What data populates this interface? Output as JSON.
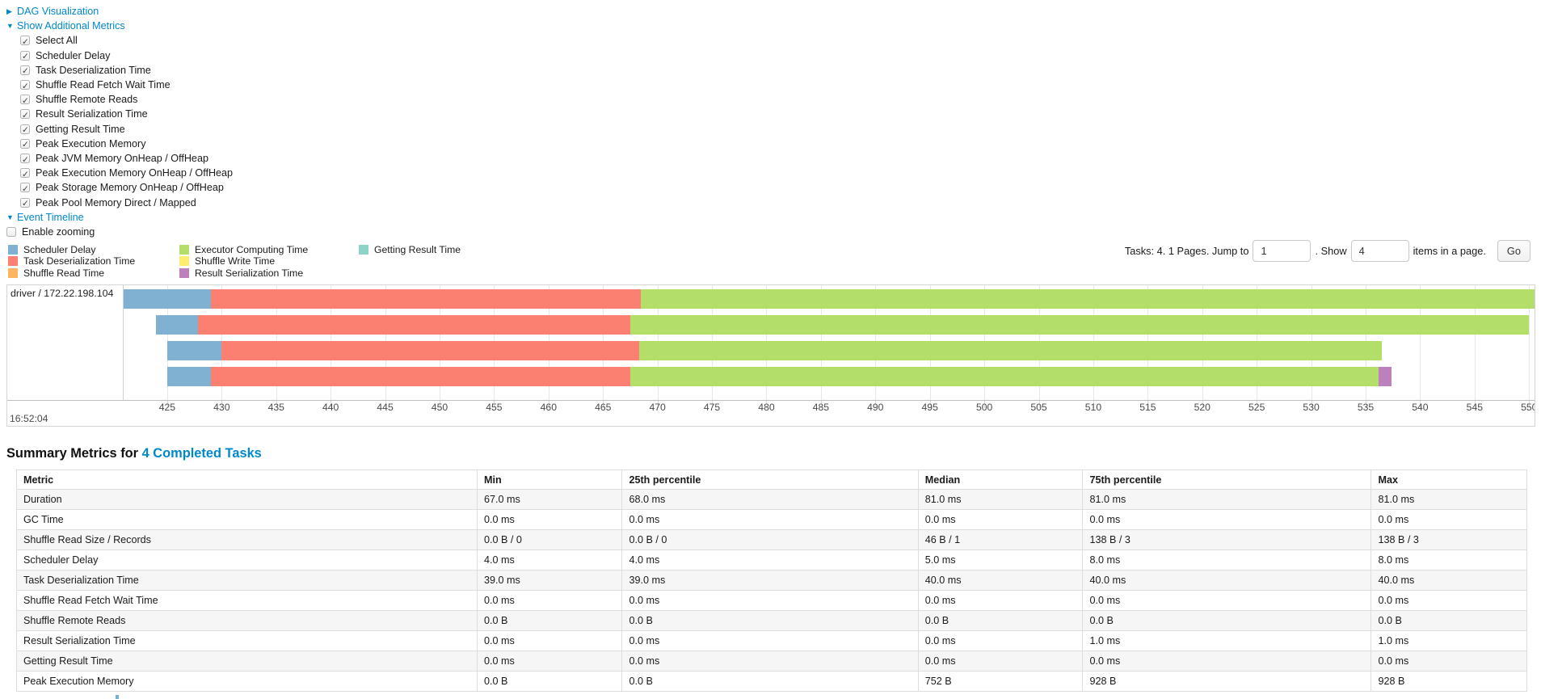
{
  "links": {
    "dag": "DAG Visualization",
    "metrics": "Show Additional Metrics",
    "timeline": "Event Timeline"
  },
  "metrics_panel": {
    "items": [
      {
        "label": "Select All",
        "checked": true
      },
      {
        "label": "Scheduler Delay",
        "checked": true
      },
      {
        "label": "Task Deserialization Time",
        "checked": true
      },
      {
        "label": "Shuffle Read Fetch Wait Time",
        "checked": true
      },
      {
        "label": "Shuffle Remote Reads",
        "checked": true
      },
      {
        "label": "Result Serialization Time",
        "checked": true
      },
      {
        "label": "Getting Result Time",
        "checked": true
      },
      {
        "label": "Peak Execution Memory",
        "checked": true
      },
      {
        "label": "Peak JVM Memory OnHeap / OffHeap",
        "checked": true
      },
      {
        "label": "Peak Execution Memory OnHeap / OffHeap",
        "checked": true
      },
      {
        "label": "Peak Storage Memory OnHeap / OffHeap",
        "checked": true
      },
      {
        "label": "Peak Pool Memory Direct / Mapped",
        "checked": true
      }
    ]
  },
  "enable_zooming": {
    "label": "Enable zooming",
    "checked": false
  },
  "legend": {
    "columns": [
      [
        {
          "label": "Scheduler Delay",
          "color": "#80B1D3"
        },
        {
          "label": "Task Deserialization Time",
          "color": "#FB8072"
        },
        {
          "label": "Shuffle Read Time",
          "color": "#FDB462"
        }
      ],
      [
        {
          "label": "Executor Computing Time",
          "color": "#B3DE69"
        },
        {
          "label": "Shuffle Write Time",
          "color": "#FFED6F"
        },
        {
          "label": "Result Serialization Time",
          "color": "#BC80BD"
        }
      ],
      [
        {
          "label": "Getting Result Time",
          "color": "#8DD3C7"
        }
      ]
    ]
  },
  "pagination": {
    "prefix": "Tasks: 4. 1 Pages. Jump to",
    "jump_value": "1",
    "mid": ". Show",
    "show_value": "4",
    "suffix": "items in a page.",
    "go": "Go"
  },
  "chart_data": {
    "type": "timeline",
    "group_label": "driver / 172.22.198.104",
    "x_axis": {
      "unit": "seconds within minute 16:52",
      "start": 421,
      "end": 550.5,
      "tick_start": 425,
      "tick_end": 550,
      "tick_step": 5,
      "major_label": "16:52:04"
    },
    "colors": {
      "scheduler_delay": "#80B1D3",
      "task_deserialization": "#FB8072",
      "executor_computing": "#B3DE69",
      "result_serialization": "#BC80BD"
    },
    "tasks": [
      {
        "segments": [
          {
            "key": "scheduler_delay",
            "from": 421,
            "to": 429
          },
          {
            "key": "task_deserialization",
            "from": 429,
            "to": 468.5
          },
          {
            "key": "executor_computing",
            "from": 468.5,
            "to": 550.5
          }
        ]
      },
      {
        "segments": [
          {
            "key": "scheduler_delay",
            "from": 424,
            "to": 427.8
          },
          {
            "key": "task_deserialization",
            "from": 427.8,
            "to": 467.5
          },
          {
            "key": "executor_computing",
            "from": 467.5,
            "to": 550
          }
        ]
      },
      {
        "segments": [
          {
            "key": "scheduler_delay",
            "from": 425,
            "to": 430
          },
          {
            "key": "task_deserialization",
            "from": 430,
            "to": 468.3
          },
          {
            "key": "executor_computing",
            "from": 468.3,
            "to": 536.5
          }
        ]
      },
      {
        "segments": [
          {
            "key": "scheduler_delay",
            "from": 425,
            "to": 429
          },
          {
            "key": "task_deserialization",
            "from": 429,
            "to": 467.5
          },
          {
            "key": "executor_computing",
            "from": 467.5,
            "to": 536.2
          },
          {
            "key": "result_serialization",
            "from": 536.2,
            "to": 537.4
          }
        ]
      }
    ]
  },
  "summary": {
    "title_prefix": "Summary Metrics for",
    "title_link": "4 Completed Tasks",
    "headers": [
      "Metric",
      "Min",
      "25th percentile",
      "Median",
      "75th percentile",
      "Max"
    ],
    "rows": [
      {
        "metric": "Duration",
        "values": [
          "67.0 ms",
          "68.0 ms",
          "81.0 ms",
          "81.0 ms",
          "81.0 ms"
        ]
      },
      {
        "metric": "GC Time",
        "values": [
          "0.0 ms",
          "0.0 ms",
          "0.0 ms",
          "0.0 ms",
          "0.0 ms"
        ]
      },
      {
        "metric": "Shuffle Read Size / Records",
        "values": [
          "0.0 B / 0",
          "0.0 B / 0",
          "46 B / 1",
          "138 B / 3",
          "138 B / 3"
        ]
      },
      {
        "metric": "Scheduler Delay",
        "values": [
          "4.0 ms",
          "4.0 ms",
          "5.0 ms",
          "8.0 ms",
          "8.0 ms"
        ]
      },
      {
        "metric": "Task Deserialization Time",
        "values": [
          "39.0 ms",
          "39.0 ms",
          "40.0 ms",
          "40.0 ms",
          "40.0 ms"
        ]
      },
      {
        "metric": "Shuffle Read Fetch Wait Time",
        "values": [
          "0.0 ms",
          "0.0 ms",
          "0.0 ms",
          "0.0 ms",
          "0.0 ms"
        ]
      },
      {
        "metric": "Shuffle Remote Reads",
        "values": [
          "0.0 B",
          "0.0 B",
          "0.0 B",
          "0.0 B",
          "0.0 B"
        ]
      },
      {
        "metric": "Result Serialization Time",
        "values": [
          "0.0 ms",
          "0.0 ms",
          "0.0 ms",
          "1.0 ms",
          "1.0 ms"
        ]
      },
      {
        "metric": "Getting Result Time",
        "values": [
          "0.0 ms",
          "0.0 ms",
          "0.0 ms",
          "0.0 ms",
          "0.0 ms"
        ]
      },
      {
        "metric": "Peak Execution Memory",
        "values": [
          "0.0 B",
          "0.0 B",
          "752 B",
          "928 B",
          "928 B"
        ]
      }
    ]
  },
  "accent_link_color": "#0088cc"
}
